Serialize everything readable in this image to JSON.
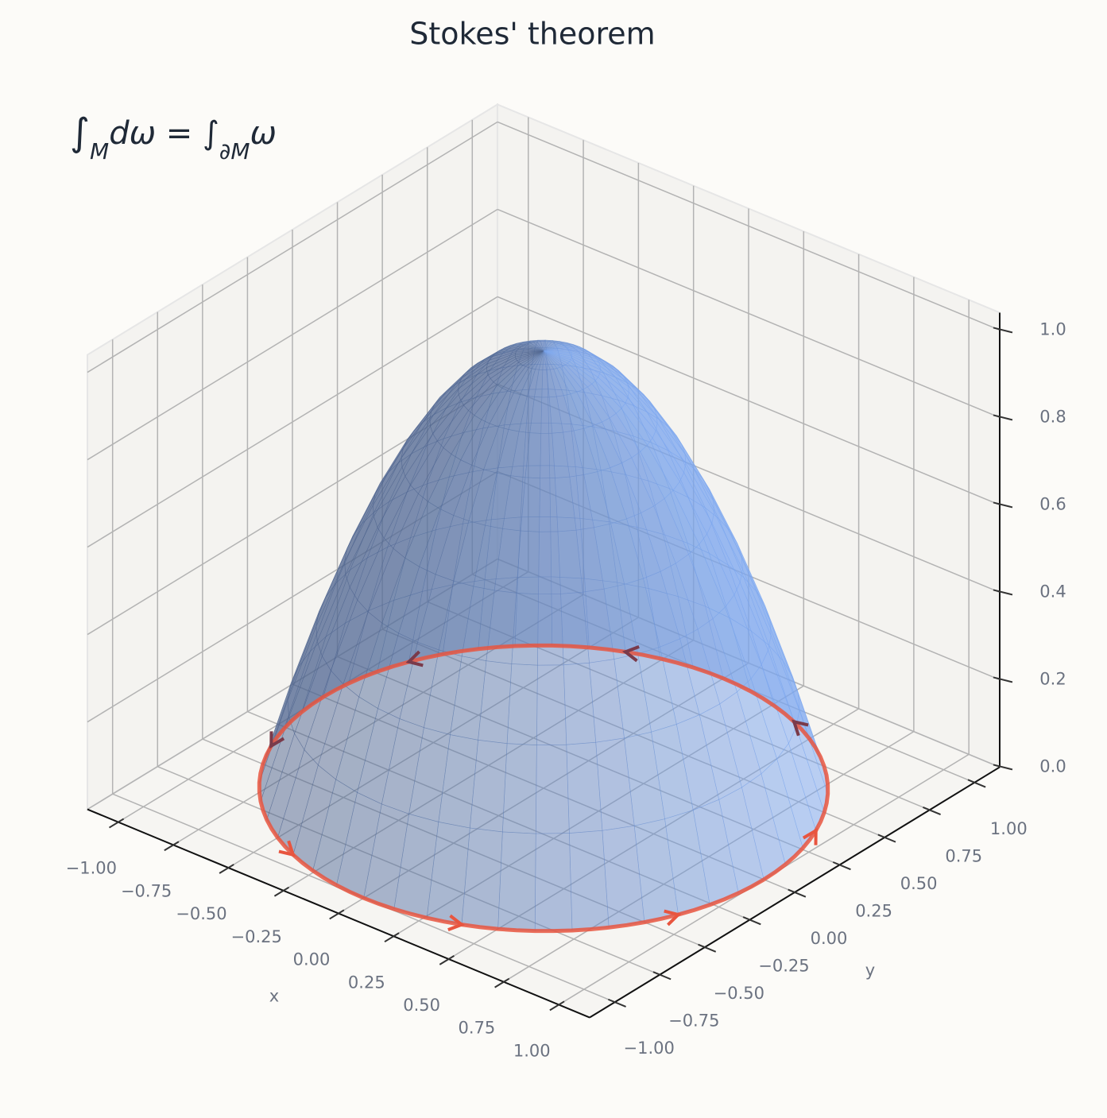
{
  "chart_data": {
    "type": "surface3d",
    "title": "Stokes' theorem",
    "annotation": [
      "∫",
      "M",
      "dω = ∫",
      "∂M",
      "ω"
    ],
    "xlabel": "x",
    "ylabel": "y",
    "xlim": [
      -1,
      1
    ],
    "ylim": [
      -1,
      1
    ],
    "zlim": [
      0,
      1
    ],
    "xticks": [
      {
        "value": -1,
        "label": "−1.00"
      },
      {
        "value": -0.75,
        "label": "−0.75"
      },
      {
        "value": -0.5,
        "label": "−0.50"
      },
      {
        "value": -0.25,
        "label": "−0.25"
      },
      {
        "value": 0,
        "label": "0.00"
      },
      {
        "value": 0.25,
        "label": "0.25"
      },
      {
        "value": 0.5,
        "label": "0.50"
      },
      {
        "value": 0.75,
        "label": "0.75"
      },
      {
        "value": 1,
        "label": "1.00"
      }
    ],
    "yticks": [
      {
        "value": -1,
        "label": "−1.00"
      },
      {
        "value": -0.75,
        "label": "−0.75"
      },
      {
        "value": -0.5,
        "label": "−0.50"
      },
      {
        "value": -0.25,
        "label": "−0.25"
      },
      {
        "value": 0,
        "label": "0.00"
      },
      {
        "value": 0.25,
        "label": "0.25"
      },
      {
        "value": 0.5,
        "label": "0.50"
      },
      {
        "value": 0.75,
        "label": "0.75"
      },
      {
        "value": 1,
        "label": "1.00"
      }
    ],
    "zticks": [
      {
        "value": 0,
        "label": "0.0"
      },
      {
        "value": 0.2,
        "label": "0.2"
      },
      {
        "value": 0.4,
        "label": "0.4"
      },
      {
        "value": 0.6,
        "label": "0.6"
      },
      {
        "value": 0.8,
        "label": "0.8"
      },
      {
        "value": 1,
        "label": "1.0"
      }
    ],
    "grid": true,
    "surface": {
      "r": [
        0,
        0.1,
        0.2,
        0.3,
        0.4,
        0.5,
        0.6,
        0.7,
        0.8,
        0.9,
        1
      ],
      "z": [
        1,
        0.99,
        0.96,
        0.91,
        0.84,
        0.75,
        0.64,
        0.51,
        0.36,
        0.19,
        0
      ],
      "color": "#7ba7f2"
    },
    "boundary": {
      "color": "#e8553f"
    }
  }
}
